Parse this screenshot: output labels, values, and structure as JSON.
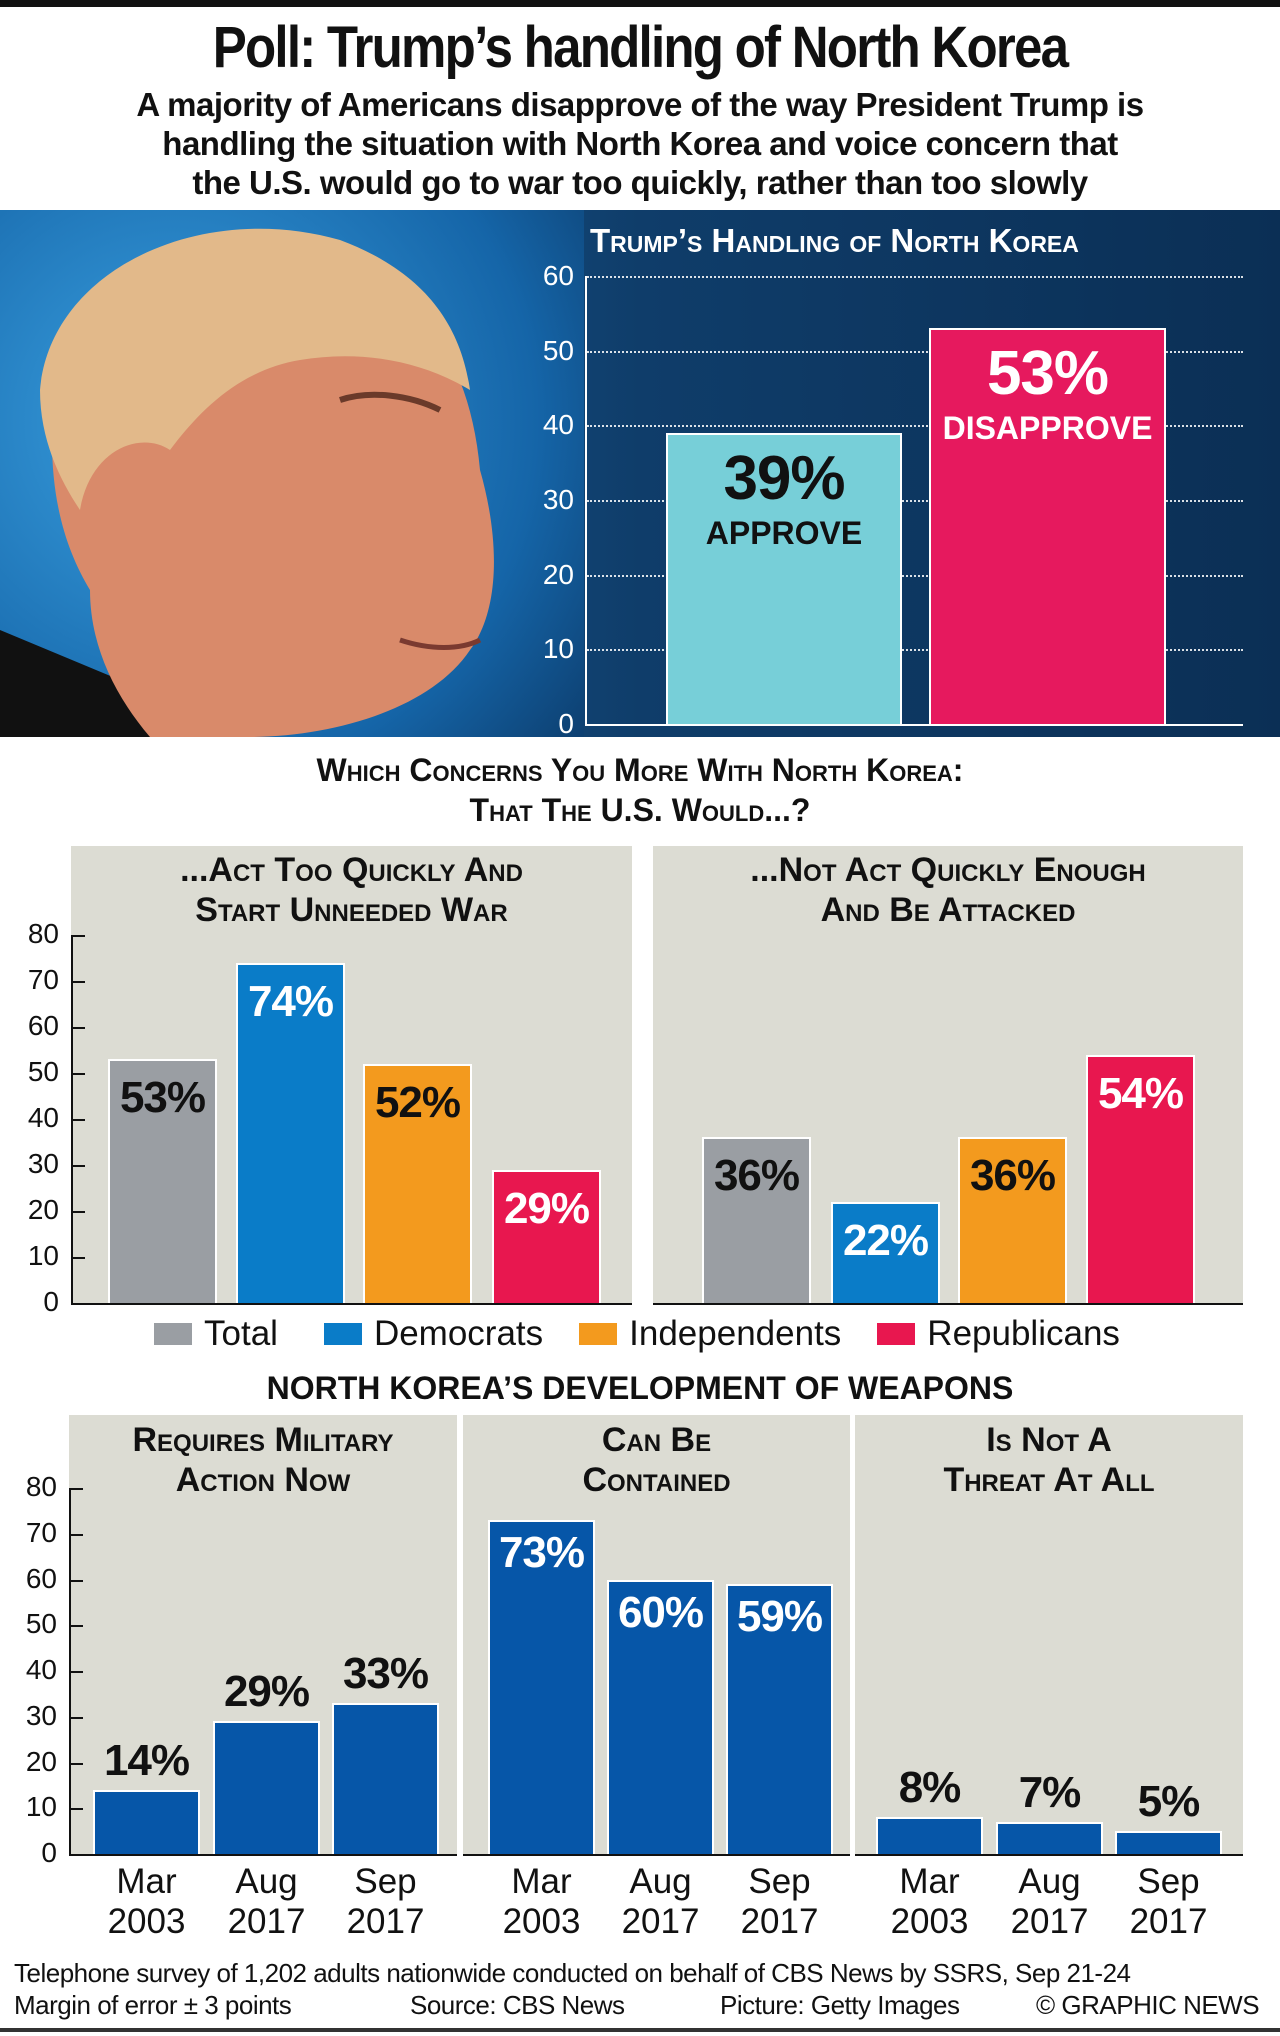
{
  "title": "Poll: Trump’s handling of North Korea",
  "subtitle": [
    "A majority of Americans disapprove of the way President Trump is",
    "handling the situation with North Korea and voice concern that",
    "the U.S. would go to war too quickly, rather than too slowly"
  ],
  "colors": {
    "approve": "#77cfd8",
    "disapprove": "#e6195e",
    "total": "#9a9ea3",
    "democrats": "#0a7cc8",
    "independents": "#f39a1e",
    "republicans": "#e8174f",
    "weapons": "#0656a8"
  },
  "chart_data": [
    {
      "type": "bar",
      "title": "Trump’s Handling of North Korea",
      "ylim": [
        0,
        60
      ],
      "yticks": [
        0,
        10,
        20,
        30,
        40,
        50,
        60
      ],
      "categories": [
        "Approve",
        "Disapprove"
      ],
      "values": [
        39,
        53
      ],
      "labels": [
        "39%",
        "53%"
      ]
    },
    {
      "type": "bar",
      "title": "Which Concerns You More With North Korea: That The U.S. Would...?",
      "title_lines": [
        "Which Concerns You More With North Korea:",
        "That The U.S. Would...?"
      ],
      "ylim": [
        0,
        80
      ],
      "yticks": [
        0,
        10,
        20,
        30,
        40,
        50,
        60,
        70,
        80
      ],
      "legend": [
        "Total",
        "Democrats",
        "Independents",
        "Republicans"
      ],
      "panels": [
        {
          "title": [
            "...Act Too Quickly And",
            "Start Unneeded War"
          ],
          "values": [
            53,
            74,
            52,
            29
          ],
          "labels": [
            "53%",
            "74%",
            "52%",
            "29%"
          ]
        },
        {
          "title": [
            "...Not Act Quickly Enough",
            "And Be Attacked"
          ],
          "values": [
            36,
            22,
            36,
            54
          ],
          "labels": [
            "36%",
            "22%",
            "36%",
            "54%"
          ]
        }
      ]
    },
    {
      "type": "bar",
      "title": "North Korea’s development of weapons",
      "ylim": [
        0,
        80
      ],
      "yticks": [
        0,
        10,
        20,
        30,
        40,
        50,
        60,
        70,
        80
      ],
      "categories": [
        [
          "Mar",
          "2003"
        ],
        [
          "Aug",
          "2017"
        ],
        [
          "Sep",
          "2017"
        ]
      ],
      "panels": [
        {
          "title": [
            "Requires Military",
            "Action Now"
          ],
          "values": [
            14,
            29,
            33
          ],
          "labels": [
            "14%",
            "29%",
            "33%"
          ]
        },
        {
          "title": [
            "Can Be",
            "Contained"
          ],
          "values": [
            73,
            60,
            59
          ],
          "labels": [
            "73%",
            "60%",
            "59%"
          ]
        },
        {
          "title": [
            "Is Not A",
            "Threat At All"
          ],
          "values": [
            8,
            7,
            5
          ],
          "labels": [
            "8%",
            "7%",
            "5%"
          ]
        }
      ]
    }
  ],
  "footer": {
    "survey": "Telephone survey of 1,202 adults nationwide conducted on behalf of CBS News by SSRS, Sep 21-24",
    "margin": "Margin of error ± 3 points",
    "source": "Source: CBS News",
    "picture": "Picture: Getty Images",
    "credit": "© GRAPHIC NEWS"
  }
}
